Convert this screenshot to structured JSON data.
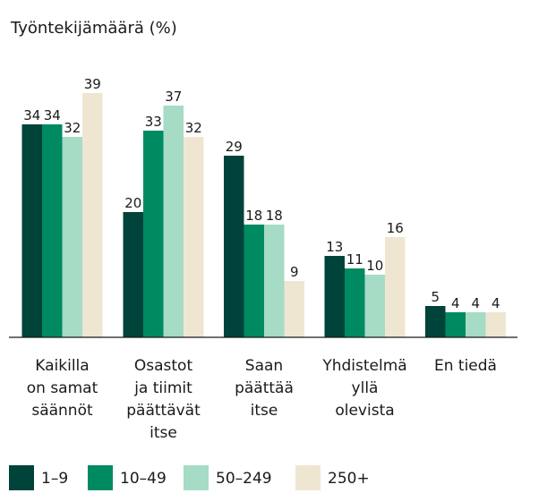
{
  "chart_data": {
    "type": "bar",
    "title": "Työntekijämäärä (%)",
    "categories": [
      [
        "Kaikilla",
        "on samat",
        "säännöt"
      ],
      [
        "Osastot",
        "ja tiimit",
        "päättävät",
        "itse"
      ],
      [
        "Saan",
        "päättää",
        "itse"
      ],
      [
        "Yhdistelmä",
        "yllä",
        "olevista"
      ],
      [
        "En tiedä"
      ]
    ],
    "series": [
      {
        "name": "1–9",
        "color": "#00433a",
        "values": [
          34,
          20,
          29,
          13,
          5
        ]
      },
      {
        "name": "10–49",
        "color": "#008a61",
        "values": [
          34,
          33,
          18,
          11,
          4
        ]
      },
      {
        "name": "50–249",
        "color": "#a6dbc6",
        "values": [
          32,
          37,
          18,
          10,
          4
        ]
      },
      {
        "name": "250+",
        "color": "#efe6d2",
        "values": [
          39,
          32,
          9,
          16,
          4
        ]
      }
    ],
    "ylim": [
      0,
      39
    ],
    "grid": false,
    "legend": "bottom-left"
  }
}
